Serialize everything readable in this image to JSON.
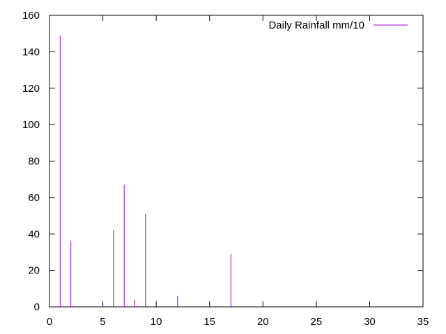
{
  "chart_data": {
    "type": "bar",
    "style": "impulses",
    "series": [
      {
        "name": "Daily Rainfall mm/10",
        "color": "#9400d3",
        "points": [
          {
            "x": 1,
            "y": 149
          },
          {
            "x": 2,
            "y": 36
          },
          {
            "x": 5,
            "y": 1
          },
          {
            "x": 6,
            "y": 42
          },
          {
            "x": 7,
            "y": 67
          },
          {
            "x": 8,
            "y": 4
          },
          {
            "x": 9,
            "y": 51
          },
          {
            "x": 12,
            "y": 6
          },
          {
            "x": 15,
            "y": 1
          },
          {
            "x": 17,
            "y": 29
          }
        ]
      }
    ],
    "xlim": [
      0,
      35
    ],
    "ylim": [
      0,
      160
    ],
    "xticks": [
      "0",
      "5",
      "10",
      "15",
      "20",
      "25",
      "30",
      "35"
    ],
    "yticks": [
      "0",
      "20",
      "40",
      "60",
      "80",
      "100",
      "120",
      "140",
      "160"
    ],
    "legend_position": "top-right",
    "grid": false
  }
}
